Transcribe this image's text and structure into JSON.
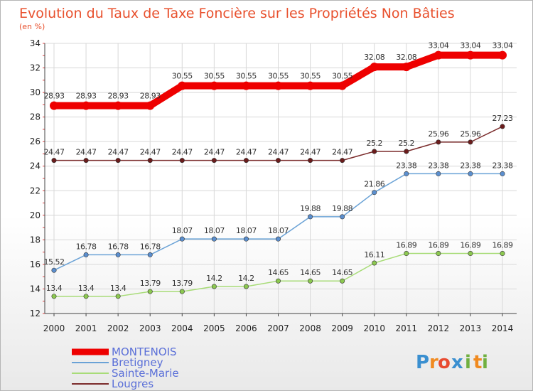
{
  "chart_data": {
    "type": "line",
    "title": "Evolution du Taux de Taxe Foncière sur les Propriétés Non Bâties",
    "subtitle": "(en %)",
    "xlabel": "",
    "ylabel": "",
    "ylim": [
      12,
      34
    ],
    "yticks": [
      12,
      14,
      16,
      18,
      20,
      22,
      24,
      26,
      28,
      30,
      32,
      34
    ],
    "grid": true,
    "legend_position": "bottom-left",
    "x": [
      "2000",
      "2001",
      "2002",
      "2003",
      "2004",
      "2005",
      "2006",
      "2007",
      "2008",
      "2009",
      "2010",
      "2011",
      "2012",
      "2013",
      "2014"
    ],
    "series": [
      {
        "name": "MONTENOIS",
        "color": "#ee0000",
        "thick": true,
        "values": [
          28.93,
          28.93,
          28.93,
          28.93,
          30.55,
          30.55,
          30.55,
          30.55,
          30.55,
          30.55,
          32.08,
          32.08,
          33.04,
          33.04,
          33.04
        ],
        "labels": [
          "28.93",
          "28.93",
          "28.93",
          "28.93",
          "30.55",
          "30.55",
          "30.55",
          "30.55",
          "30.55",
          "30.55",
          "32.08",
          "32.08",
          "33.04",
          "33.04",
          "33.04"
        ]
      },
      {
        "name": "Bretigney",
        "color": "#6aa2d6",
        "point_color": "#5b8fcf",
        "thick": false,
        "values": [
          15.52,
          16.78,
          16.78,
          16.78,
          18.07,
          18.07,
          18.07,
          18.07,
          19.88,
          19.88,
          21.86,
          23.38,
          23.38,
          23.38,
          23.38
        ],
        "labels": [
          "15.52",
          "16.78",
          "16.78",
          "16.78",
          "18.07",
          "18.07",
          "18.07",
          "18.07",
          "19.88",
          "19.88",
          "21.86",
          "23.38",
          "23.38",
          "23.38",
          "23.38"
        ]
      },
      {
        "name": "Sainte-Marie",
        "color": "#a8dc78",
        "point_color": "#8cc850",
        "thick": false,
        "values": [
          13.4,
          13.4,
          13.4,
          13.79,
          13.79,
          14.2,
          14.2,
          14.65,
          14.65,
          14.65,
          16.11,
          16.89,
          16.89,
          16.89,
          16.89
        ],
        "labels": [
          "13.4",
          "13.4",
          "13.4",
          "13.79",
          "13.79",
          "14.2",
          "14.2",
          "14.65",
          "14.65",
          "14.65",
          "16.11",
          "16.89",
          "16.89",
          "16.89",
          "16.89"
        ]
      },
      {
        "name": "Lougres",
        "color": "#7b2c2c",
        "point_color": "#6b1c1c",
        "thick": false,
        "values": [
          24.47,
          24.47,
          24.47,
          24.47,
          24.47,
          24.47,
          24.47,
          24.47,
          24.47,
          24.47,
          25.2,
          25.2,
          25.96,
          25.96,
          27.23
        ],
        "labels": [
          "24.47",
          "24.47",
          "24.47",
          "24.47",
          "24.47",
          "24.47",
          "24.47",
          "24.47",
          "24.47",
          "24.47",
          "25.2",
          "25.2",
          "25.96",
          "25.96",
          "27.23"
        ]
      }
    ]
  },
  "brand": {
    "letters": [
      "P",
      "r",
      "o",
      "x",
      "i",
      "t",
      "i"
    ],
    "colors": [
      "#3a8fd0",
      "#f08a20",
      "#e84a30",
      "#3a8fd0",
      "#70b040",
      "#f08a20",
      "#70b040"
    ]
  }
}
